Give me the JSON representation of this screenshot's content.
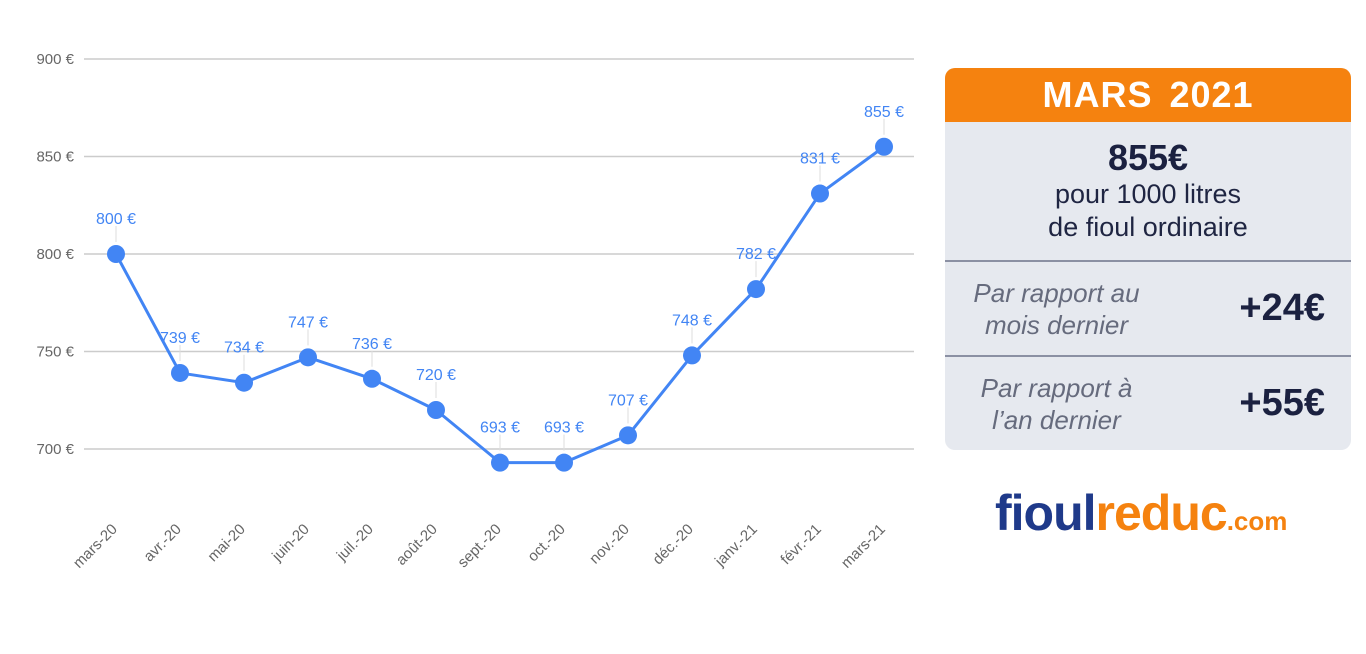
{
  "chart_data": {
    "type": "line",
    "categories": [
      "mars-20",
      "avr.-20",
      "mai-20",
      "juin-20",
      "juil.-20",
      "août-20",
      "sept.-20",
      "oct.-20",
      "nov.-20",
      "déc.-20",
      "janv.-21",
      "févr.-21",
      "mars-21"
    ],
    "values": [
      800,
      739,
      734,
      747,
      736,
      720,
      693,
      693,
      707,
      748,
      782,
      831,
      855
    ],
    "value_labels": [
      "800 €",
      "739 €",
      "734 €",
      "747 €",
      "736 €",
      "720 €",
      "693 €",
      "693 €",
      "707 €",
      "748 €",
      "782 €",
      "831 €",
      "855 €"
    ],
    "y_ticks": [
      700,
      750,
      800,
      850,
      900
    ],
    "y_tick_labels": [
      "700 €",
      "750 €",
      "800 €",
      "850 €",
      "900 €"
    ],
    "ylim": [
      700,
      900
    ],
    "grid": true,
    "title": "",
    "xlabel": "",
    "ylabel": "",
    "line_color": "#4285f4"
  },
  "panel": {
    "header": "MARS  2021",
    "price": "855€",
    "price_line1": "pour 1000 litres",
    "price_line2": "de fioul ordinaire",
    "compare": [
      {
        "label_line1": "Par rapport au",
        "label_line2": "mois dernier",
        "value": "+24€"
      },
      {
        "label_line1": "Par rapport à",
        "label_line2": "l’an dernier",
        "value": "+55€"
      }
    ],
    "header_color": "#f5820f",
    "background_color": "#e6e9ef"
  },
  "logo": {
    "part1": "fioul",
    "part2": "reduc",
    "part3": ".com"
  }
}
